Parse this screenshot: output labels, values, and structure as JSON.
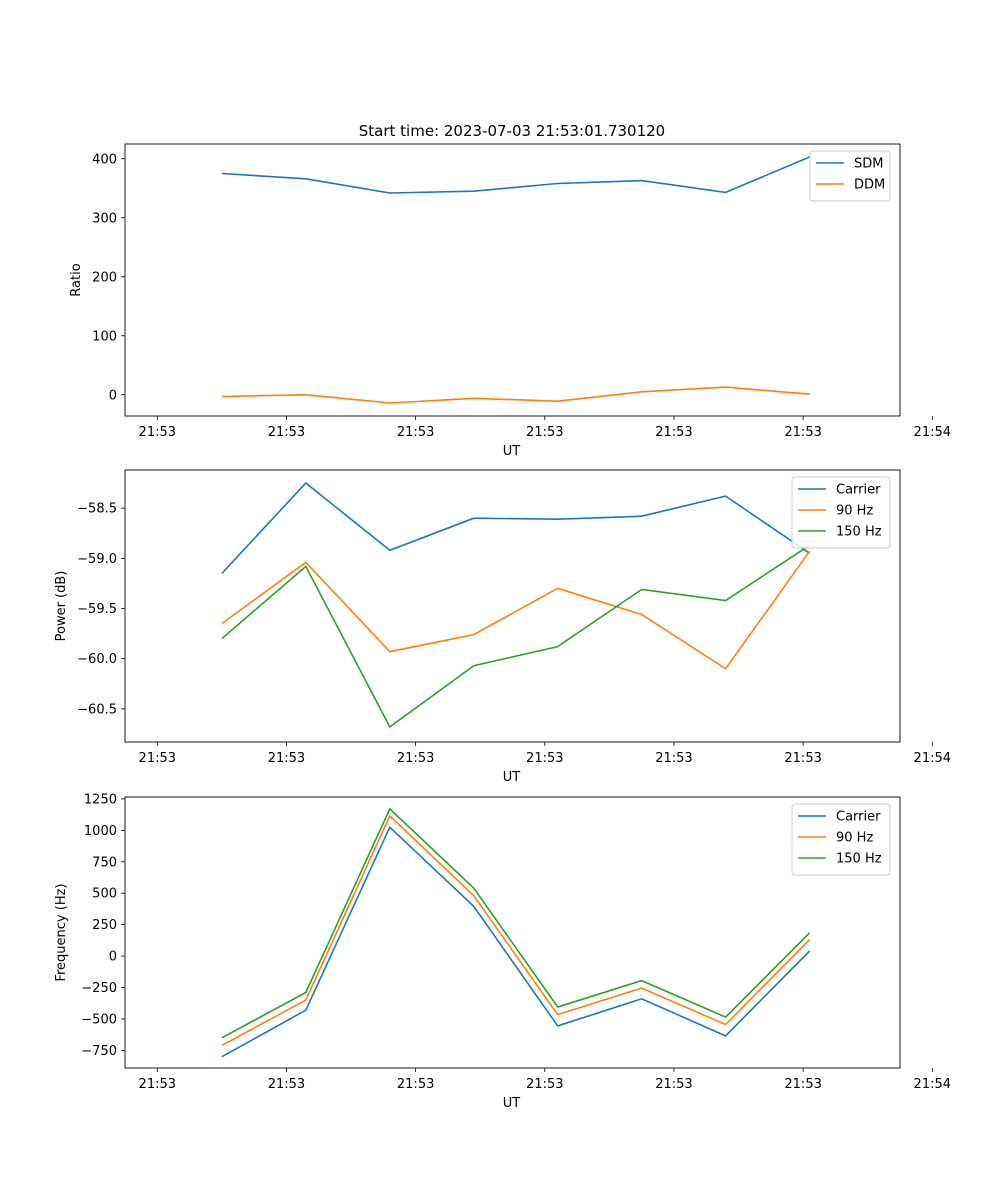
{
  "figure_title": "Start time: 2023-07-03 21:53:01.730120",
  "colors": {
    "blue": "#1f77b4",
    "orange": "#ff7f0e",
    "green": "#2ca02c",
    "axes": "#000000",
    "background": "#ffffff"
  },
  "chart_data": [
    {
      "type": "line",
      "title": "Start time: 2023-07-03 21:53:01.730120",
      "xlabel": "UT",
      "ylabel": "Ratio",
      "xlim": [
        -0.25,
        5.75
      ],
      "ylim": [
        -36,
        425
      ],
      "xticks": [
        0,
        1,
        2,
        3,
        4,
        5,
        6
      ],
      "xtick_labels": [
        "21:53",
        "21:53",
        "21:53",
        "21:53",
        "21:53",
        "21:53",
        "21:54"
      ],
      "yticks": [
        0,
        100,
        200,
        300,
        400
      ],
      "ytick_labels": [
        "0",
        "100",
        "200",
        "300",
        "400"
      ],
      "x": [
        0.5,
        1.15,
        1.8,
        2.45,
        3.1,
        3.75,
        4.4,
        5.05
      ],
      "series": [
        {
          "name": "SDM",
          "color": "#1f77b4",
          "values": [
            375,
            366,
            342,
            345,
            358,
            363,
            343,
            403
          ]
        },
        {
          "name": "DDM",
          "color": "#ff7f0e",
          "values": [
            -3,
            0,
            -14,
            -6,
            -11,
            5,
            13,
            1
          ]
        }
      ],
      "legend": "top-right"
    },
    {
      "type": "line",
      "title": "",
      "xlabel": "UT",
      "ylabel": "Power (dB)",
      "xlim": [
        -0.25,
        5.75
      ],
      "ylim": [
        -60.83,
        -58.12
      ],
      "xticks": [
        0,
        1,
        2,
        3,
        4,
        5,
        6
      ],
      "xtick_labels": [
        "21:53",
        "21:53",
        "21:53",
        "21:53",
        "21:53",
        "21:53",
        "21:54"
      ],
      "yticks": [
        -60.5,
        -60.0,
        -59.5,
        -59.0,
        -58.5
      ],
      "ytick_labels": [
        "−60.5",
        "−60.0",
        "−59.5",
        "−59.0",
        "−58.5"
      ],
      "x": [
        0.5,
        1.15,
        1.8,
        2.45,
        3.1,
        3.75,
        4.4,
        5.05
      ],
      "series": [
        {
          "name": "Carrier",
          "color": "#1f77b4",
          "values": [
            -59.15,
            -58.25,
            -58.92,
            -58.6,
            -58.61,
            -58.58,
            -58.38,
            -58.95
          ]
        },
        {
          "name": "90 Hz",
          "color": "#ff7f0e",
          "values": [
            -59.65,
            -59.04,
            -59.93,
            -59.76,
            -59.3,
            -59.56,
            -60.1,
            -58.93
          ]
        },
        {
          "name": "150 Hz",
          "color": "#2ca02c",
          "values": [
            -59.8,
            -59.08,
            -60.68,
            -60.07,
            -59.88,
            -59.31,
            -59.42,
            -58.87
          ]
        }
      ],
      "legend": "top-right"
    },
    {
      "type": "line",
      "title": "",
      "xlabel": "UT",
      "ylabel": "Frequency (Hz)",
      "xlim": [
        -0.25,
        5.75
      ],
      "ylim": [
        -890,
        1265
      ],
      "xticks": [
        0,
        1,
        2,
        3,
        4,
        5,
        6
      ],
      "xtick_labels": [
        "21:53",
        "21:53",
        "21:53",
        "21:53",
        "21:53",
        "21:53",
        "21:54"
      ],
      "yticks": [
        -750,
        -500,
        -250,
        0,
        250,
        500,
        750,
        1000,
        1250
      ],
      "ytick_labels": [
        "−750",
        "−500",
        "−250",
        "0",
        "250",
        "500",
        "750",
        "1000",
        "1250"
      ],
      "x": [
        0.5,
        1.15,
        1.8,
        2.45,
        3.1,
        3.75,
        4.4,
        5.05
      ],
      "series": [
        {
          "name": "Carrier",
          "color": "#1f77b4",
          "values": [
            -800,
            -430,
            1025,
            395,
            -555,
            -340,
            -635,
            40
          ]
        },
        {
          "name": "90 Hz",
          "color": "#ff7f0e",
          "values": [
            -710,
            -350,
            1115,
            480,
            -465,
            -255,
            -545,
            130
          ]
        },
        {
          "name": "150 Hz",
          "color": "#2ca02c",
          "values": [
            -650,
            -290,
            1170,
            540,
            -405,
            -195,
            -485,
            185
          ]
        }
      ],
      "legend": "top-right"
    }
  ]
}
